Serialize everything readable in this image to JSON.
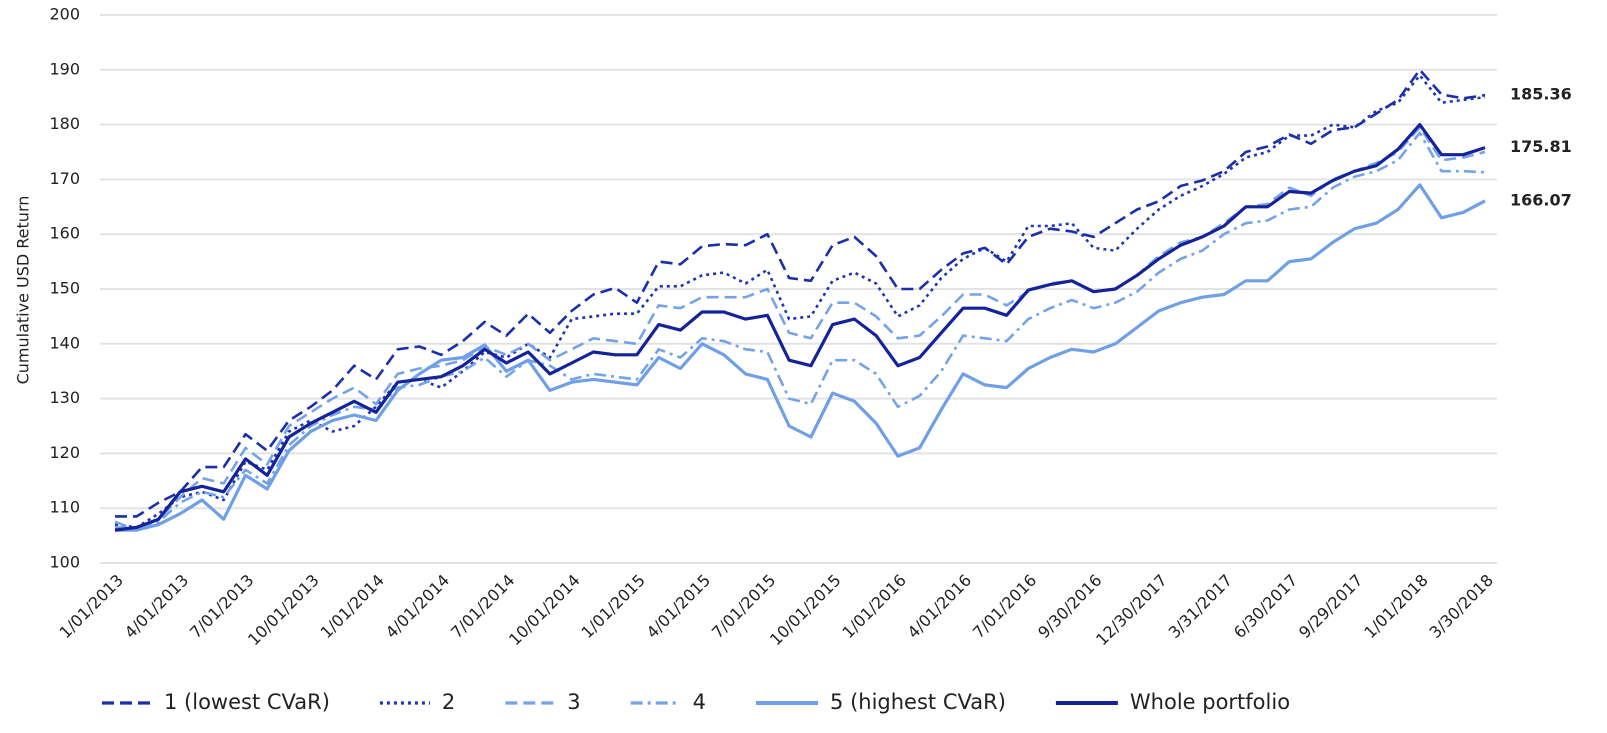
{
  "chart_data": {
    "type": "line",
    "y_label": "Cumulative USD Return",
    "ylim": [
      100,
      200
    ],
    "yticks": [
      100,
      110,
      120,
      130,
      140,
      150,
      160,
      170,
      180,
      190,
      200
    ],
    "grid": true,
    "legend": "bottom",
    "categories": [
      "1/01/2013",
      null,
      null,
      "4/01/2013",
      null,
      null,
      "7/01/2013",
      null,
      null,
      "10/01/2013",
      null,
      null,
      "1/01/2014",
      null,
      null,
      "4/01/2014",
      null,
      null,
      "7/01/2014",
      null,
      null,
      "10/01/2014",
      null,
      null,
      "1/01/2015",
      null,
      null,
      "4/01/2015",
      null,
      null,
      "7/01/2015",
      null,
      null,
      "10/01/2015",
      null,
      null,
      "1/01/2016",
      null,
      null,
      "4/01/2016",
      null,
      null,
      "7/01/2016",
      null,
      null,
      "9/30/2016",
      null,
      null,
      "12/30/2017",
      null,
      null,
      "3/31/2017",
      null,
      null,
      "6/30/2017",
      null,
      null,
      "9/29/2017",
      null,
      null,
      "1/01/2018",
      null,
      null,
      "3/30/2018"
    ],
    "series": [
      {
        "name": "1 (lowest CVaR)",
        "color": "#1b2fa8",
        "style": "dashed",
        "end_label": true,
        "values": [
          108.5,
          108.5,
          111,
          113,
          117.5,
          117.5,
          123.5,
          120.5,
          126,
          128.5,
          131.5,
          136,
          133.5,
          139,
          139.5,
          138,
          140.5,
          144,
          141.5,
          145.5,
          142,
          146,
          149,
          150.2,
          147.5,
          155,
          154.5,
          157.8,
          158.2,
          158,
          160,
          152,
          151.5,
          158,
          159.5,
          156,
          150,
          150,
          153.5,
          156.5,
          157.5,
          154.5,
          159.5,
          161,
          160.5,
          159.5,
          162,
          164.5,
          166,
          168.8,
          169.8,
          171.5,
          175,
          176,
          178.2,
          176.5,
          179,
          179.5,
          182,
          184.5,
          190,
          185.5,
          184.8,
          185.36
        ]
      },
      {
        "name": "2",
        "color": "#2135b0",
        "style": "dotted",
        "end_label": false,
        "values": [
          107,
          106.5,
          109,
          112,
          113,
          111.5,
          118.5,
          117,
          124,
          126,
          124,
          125,
          128.5,
          133,
          133.5,
          132,
          135,
          138.5,
          137.5,
          140,
          137.5,
          144.5,
          145,
          145.5,
          145.5,
          150.5,
          150.5,
          152.5,
          153,
          151,
          153.5,
          144.5,
          145,
          151.5,
          153,
          151,
          145,
          147,
          152,
          155.5,
          157.5,
          155,
          161.5,
          161.5,
          162,
          157.5,
          157,
          161,
          164.5,
          167,
          168.8,
          171,
          174,
          175,
          178,
          178,
          180,
          179.5,
          182.5,
          184,
          189,
          184,
          184.5,
          185
        ]
      },
      {
        "name": "3",
        "color": "#74a3e8",
        "style": "dashed",
        "end_label": false,
        "values": [
          107.5,
          106,
          108,
          112,
          115.5,
          114.5,
          121,
          118,
          125,
          127.5,
          130,
          132,
          129,
          134.5,
          135.5,
          136,
          137,
          139.5,
          138,
          140,
          137,
          139,
          141,
          140.5,
          140,
          147,
          146.5,
          148.5,
          148.5,
          148.5,
          150,
          142,
          141,
          147.5,
          147.5,
          145,
          141,
          141.5,
          145,
          149,
          149,
          147,
          149.5,
          151,
          151.5,
          149.5,
          150,
          152.5,
          156,
          158.5,
          159.5,
          162,
          165,
          165.5,
          168.5,
          167,
          170,
          171.5,
          173,
          175,
          179.5,
          173.5,
          174,
          175
        ]
      },
      {
        "name": "4",
        "color": "#74a3e8",
        "style": "dashdot",
        "end_label": false,
        "values": [
          106.5,
          106.5,
          107.5,
          111,
          113,
          112,
          117,
          114.5,
          121.5,
          125,
          127,
          128.5,
          128,
          132,
          132.5,
          134,
          135,
          137.5,
          134,
          137,
          136,
          133.5,
          134.5,
          134,
          133.5,
          139,
          137.5,
          141,
          140.5,
          139,
          138.5,
          130,
          129,
          137,
          137,
          134.5,
          128.5,
          130.5,
          135,
          141.5,
          141,
          140.5,
          144.5,
          146.5,
          148,
          146.5,
          147.5,
          149.5,
          153,
          155.5,
          157,
          160,
          162,
          162.5,
          164.5,
          165,
          168.5,
          170.5,
          171.5,
          173.5,
          178.5,
          171.5,
          171.5,
          171.3
        ]
      },
      {
        "name": "5 (highest CVaR)",
        "color": "#6f9fe6",
        "style": "solid",
        "end_label": true,
        "values": [
          106,
          106,
          107,
          109,
          111.5,
          108,
          116,
          113.5,
          120.5,
          124,
          126,
          127,
          126,
          131.5,
          134.5,
          137,
          137.5,
          139.8,
          135,
          137,
          131.5,
          133,
          133.5,
          133,
          132.5,
          137.5,
          135.5,
          140,
          138,
          134.5,
          133.5,
          125,
          123,
          131,
          129.5,
          125.5,
          119.5,
          121,
          128,
          134.5,
          132.5,
          132,
          135.5,
          137.5,
          139,
          138.5,
          140,
          143,
          146,
          147.5,
          148.5,
          149,
          151.5,
          151.5,
          155,
          155.5,
          158.5,
          161,
          162,
          164.5,
          169,
          163,
          164,
          166.07
        ]
      },
      {
        "name": "Whole portfolio",
        "color": "#14239a",
        "style": "solid",
        "end_label": true,
        "values": [
          106,
          106.5,
          108,
          113,
          114,
          113,
          119,
          116,
          123,
          125.5,
          127.5,
          129.5,
          127.5,
          133,
          133.5,
          134,
          136,
          139,
          136.5,
          138.5,
          134.5,
          136.5,
          138.5,
          138,
          138,
          143.5,
          142.5,
          145.8,
          145.8,
          144.5,
          145.2,
          137,
          136,
          143.5,
          144.5,
          141.5,
          136,
          137.5,
          142,
          146.5,
          146.5,
          145.2,
          149.8,
          150.8,
          151.5,
          149.5,
          150,
          152.5,
          155.5,
          158,
          159.5,
          161.5,
          165,
          165,
          167.8,
          167.5,
          169.8,
          171.5,
          172.5,
          175.5,
          180,
          174.5,
          174.5,
          175.81
        ]
      }
    ]
  }
}
